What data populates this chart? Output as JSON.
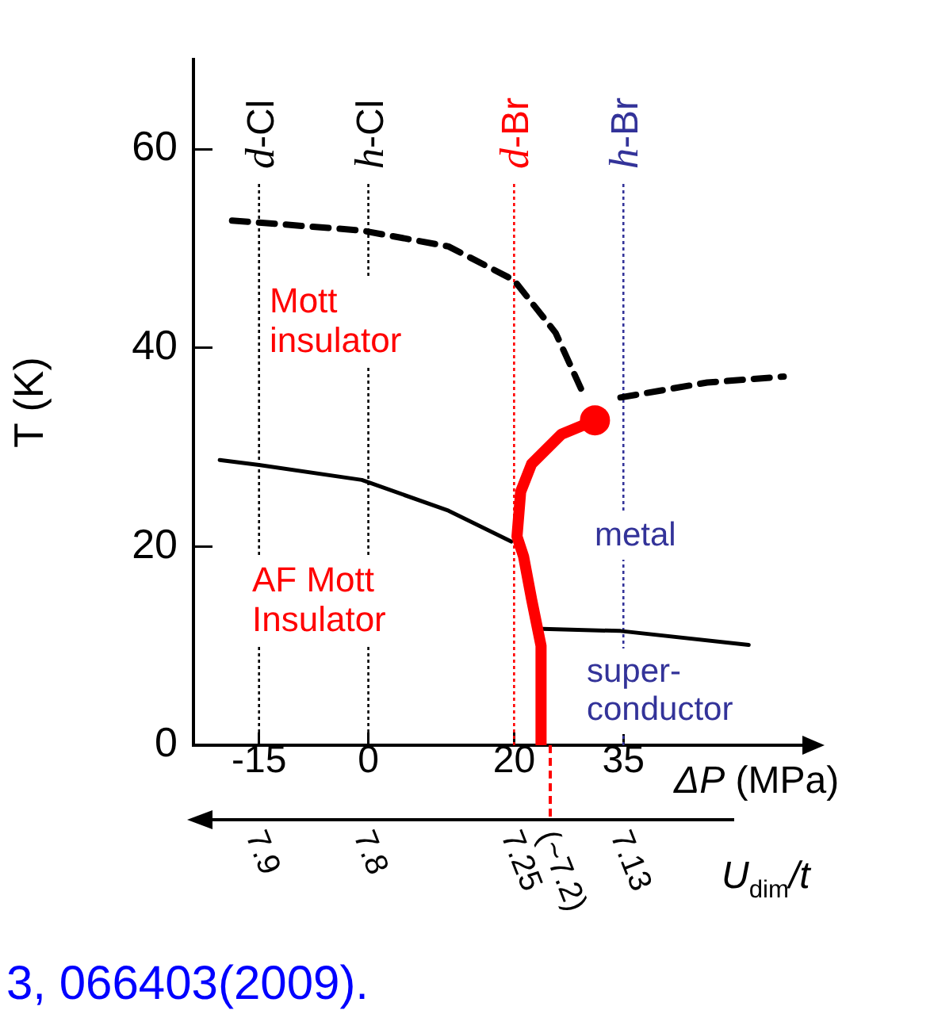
{
  "chart_data": {
    "type": "line",
    "xlabel": "ΔP (MPa)",
    "ylabel": "T (K)",
    "xlim": [
      -24,
      60
    ],
    "xticks": [
      -15,
      0,
      20,
      35
    ],
    "ylim": [
      0,
      69
    ],
    "yticks": [
      0,
      20,
      40,
      60
    ],
    "grid": false,
    "legend": false,
    "series": [
      {
        "color": "#000000",
        "line_style": "dashed",
        "x": [
          -18.7,
          -15,
          -0.9,
          11,
          20,
          25.7,
          29.3
        ],
        "values": [
          52.8,
          52.6,
          51.8,
          50.2,
          46.8,
          41.5,
          35.7
        ]
      },
      {
        "color": "#000000",
        "line_style": "dashed",
        "x": [
          34.6,
          46.5,
          57
        ],
        "values": [
          35,
          36.5,
          37.1
        ]
      },
      {
        "color": "#000000",
        "line_style": "solid",
        "x": [
          -20.4,
          -15,
          -0.9,
          11,
          19.6
        ],
        "values": [
          28.7,
          28.2,
          26.7,
          23.6,
          20.5
        ]
      },
      {
        "color": "#000000",
        "line_style": "solid",
        "x": [
          23.9,
          34.6,
          52.2
        ],
        "values": [
          11.7,
          11.5,
          10.1
        ]
      },
      {
        "color": "#ff0000",
        "line_style": "solid",
        "x": [
          31.1,
          26.5,
          22.4,
          20.9,
          20.4,
          21.3,
          22.4,
          23.7,
          23.7
        ],
        "values": [
          32.7,
          31.3,
          28.3,
          25.5,
          21,
          19,
          14.7,
          10,
          0
        ]
      },
      {
        "type": "scatter",
        "color": "#ff0000",
        "marker": "circle",
        "x": [
          31.1
        ],
        "values": [
          32.7
        ]
      }
    ],
    "ref_lines": [
      {
        "axis": "x",
        "value": -15,
        "label": "d-Cl",
        "color": "#000000",
        "line_style": "dotted"
      },
      {
        "axis": "x",
        "value": 0,
        "label": "h-Cl",
        "color": "#000000",
        "line_style": "dotted"
      },
      {
        "axis": "x",
        "value": 20,
        "label": "d-Br",
        "color": "#ff0000",
        "line_style": "dotted"
      },
      {
        "axis": "x",
        "value": 35,
        "label": "h-Br",
        "color": "#333399",
        "line_style": "dotted"
      }
    ],
    "annotations": [
      "Mott\ninsulator",
      "AF Mott\nInsulator",
      "metal",
      "super-\nconductor",
      "3, 066403(2009).",
      "U$_{dim}$/t",
      "7.9",
      "7.8",
      "7.25",
      "(~7.2)",
      "7.13"
    ]
  }
}
